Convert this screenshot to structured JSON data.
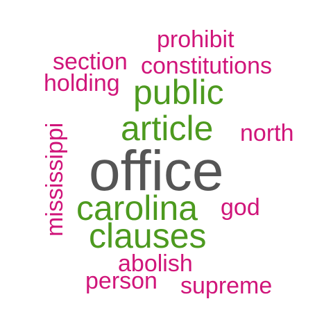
{
  "colors": {
    "top": "#555555",
    "green": "#4d9a1f",
    "magenta": "#d0157a"
  },
  "words": {
    "office": "office",
    "carolina": "carolina",
    "clauses": "clauses",
    "public": "public",
    "article": "article",
    "constitutions": "constitutions",
    "prohibit": "prohibit",
    "section": "section",
    "holding": "holding",
    "north": "north",
    "god": "god",
    "abolish": "abolish",
    "person": "person",
    "supreme": "supreme",
    "mississippi": "mississippi"
  },
  "word_colors": {
    "office": "top",
    "carolina": "green",
    "clauses": "green",
    "public": "green",
    "article": "green",
    "constitutions": "magenta",
    "prohibit": "magenta",
    "section": "magenta",
    "holding": "magenta",
    "north": "magenta",
    "god": "magenta",
    "abolish": "magenta",
    "person": "magenta",
    "supreme": "magenta",
    "mississippi": "magenta"
  }
}
